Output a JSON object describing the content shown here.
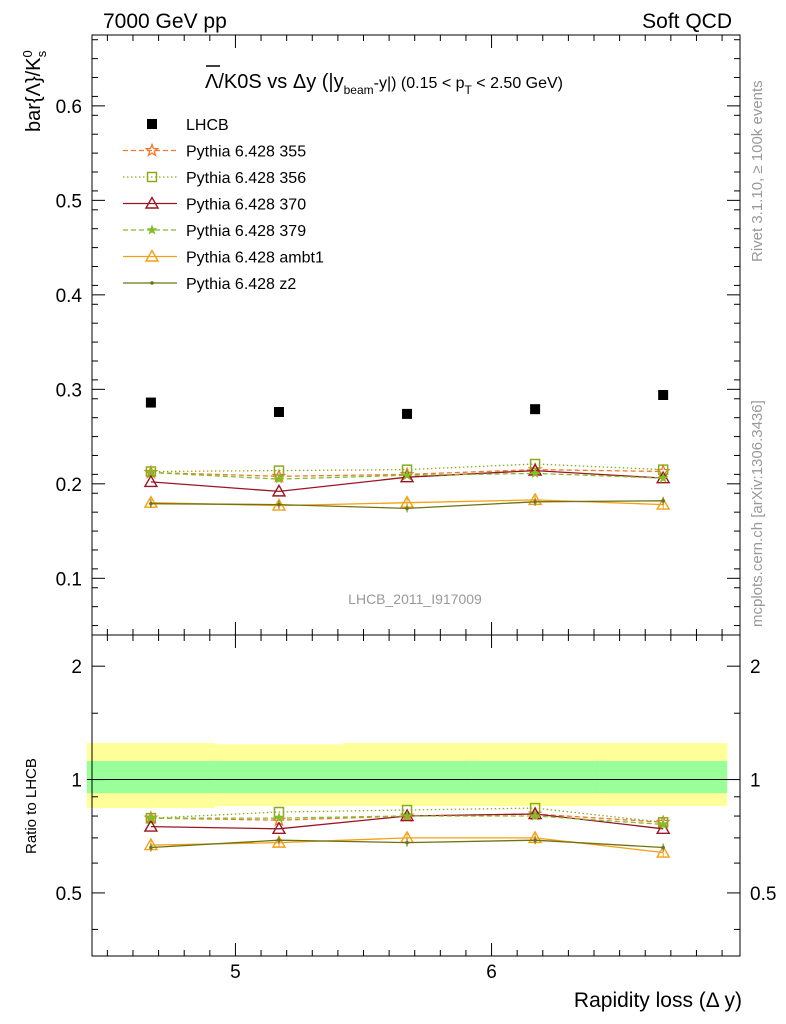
{
  "header": {
    "left": "7000 GeV pp",
    "right": "Soft QCD"
  },
  "side_text": {
    "rivet": "Rivet 3.1.10, ≥ 100k events",
    "mcplots": "mcplots.cern.ch [arXiv:1306.3436]"
  },
  "watermark": "LHCB_2011_I917009",
  "colors": {
    "lhcb": "#000000",
    "p355": "#f0782d",
    "p356": "#8caa1e",
    "p370": "#9b1423",
    "p379": "#82be28",
    "ambt1": "#f5a014",
    "z2": "#6e7314",
    "band_outer": "#ffff99",
    "band_inner": "#99ff99"
  },
  "chart_data": [
    {
      "type": "scatter",
      "title_parts": {
        "main": "Λ/K0S vs Δy (|y",
        "sub1": "beam",
        "mid": "-y|) (0.15 < p",
        "sub2": "T",
        "end": " < 2.50 GeV)"
      },
      "ylabel": "bar{Λ}/K",
      "ylabel_sup": "0",
      "ylabel_sub": "s",
      "xlim": [
        4.44,
        6.97
      ],
      "ylim": [
        0.04,
        0.675
      ],
      "yticks": [
        0.1,
        0.2,
        0.3,
        0.4,
        0.5,
        0.6
      ],
      "yticklabels": [
        "0.1",
        "0.2",
        "0.3",
        "0.4",
        "0.5",
        "0.6"
      ],
      "x": [
        4.67,
        5.17,
        5.67,
        6.17,
        6.67
      ],
      "series": [
        {
          "name": "LHCB",
          "key": "lhcb",
          "marker": "square",
          "line": "none",
          "values": [
            0.286,
            0.276,
            0.274,
            0.279,
            0.294
          ]
        },
        {
          "name": "Pythia 6.428 355",
          "key": "p355",
          "marker": "star",
          "line": "dashed",
          "values": [
            0.212,
            0.208,
            0.21,
            0.215,
            0.213
          ]
        },
        {
          "name": "Pythia 6.428 356",
          "key": "p356",
          "marker": "open-square",
          "line": "dotted",
          "values": [
            0.213,
            0.214,
            0.215,
            0.221,
            0.215
          ]
        },
        {
          "name": "Pythia 6.428 370",
          "key": "p370",
          "marker": "open-triangle",
          "line": "solid",
          "values": [
            0.202,
            0.192,
            0.207,
            0.214,
            0.206
          ]
        },
        {
          "name": "Pythia 6.428 379",
          "key": "p379",
          "marker": "small-star",
          "line": "dashed",
          "values": [
            0.212,
            0.205,
            0.209,
            0.211,
            0.206
          ]
        },
        {
          "name": "Pythia 6.428 ambt1",
          "key": "ambt1",
          "marker": "open-triangle",
          "line": "solid",
          "values": [
            0.18,
            0.177,
            0.18,
            0.183,
            0.178
          ]
        },
        {
          "name": "Pythia 6.428 z2",
          "key": "z2",
          "marker": "dot",
          "line": "solid",
          "values": [
            0.179,
            0.178,
            0.174,
            0.181,
            0.182
          ]
        }
      ]
    },
    {
      "type": "line",
      "ylabel": "Ratio to LHCB",
      "xlabel": "Rapidity loss (Δ y)",
      "xlim": [
        4.44,
        6.97
      ],
      "ylim": [
        0.34,
        2.42
      ],
      "ylog": true,
      "xticks": [
        5,
        6
      ],
      "xticklabels": [
        "5",
        "6"
      ],
      "yticks": [
        0.5,
        1,
        2
      ],
      "yticklabels": [
        "0.5",
        "1",
        "2"
      ],
      "bands": {
        "edges": [
          4.42,
          4.92,
          5.42,
          5.92,
          6.42,
          6.92
        ],
        "outer_low": [
          0.84,
          0.85,
          0.85,
          0.85,
          0.85
        ],
        "outer_high": [
          1.25,
          1.24,
          1.25,
          1.25,
          1.25
        ],
        "inner_low": [
          0.92,
          0.92,
          0.92,
          0.92,
          0.92
        ],
        "inner_high": [
          1.12,
          1.12,
          1.12,
          1.12,
          1.12
        ]
      },
      "x": [
        4.67,
        5.17,
        5.67,
        6.17,
        6.67
      ],
      "series": [
        {
          "key": "p355",
          "marker": "star",
          "line": "dashed",
          "values": [
            0.79,
            0.78,
            0.8,
            0.81,
            0.77
          ]
        },
        {
          "key": "p356",
          "marker": "open-square",
          "line": "dotted",
          "values": [
            0.79,
            0.82,
            0.83,
            0.84,
            0.77
          ]
        },
        {
          "key": "p370",
          "marker": "open-triangle",
          "line": "solid",
          "values": [
            0.75,
            0.74,
            0.8,
            0.81,
            0.74
          ]
        },
        {
          "key": "p379",
          "marker": "small-star",
          "line": "dashed",
          "values": [
            0.79,
            0.79,
            0.8,
            0.8,
            0.76
          ]
        },
        {
          "key": "ambt1",
          "marker": "open-triangle",
          "line": "solid",
          "values": [
            0.67,
            0.68,
            0.7,
            0.7,
            0.64
          ]
        },
        {
          "key": "z2",
          "marker": "dot",
          "line": "solid",
          "values": [
            0.66,
            0.69,
            0.68,
            0.69,
            0.66
          ]
        }
      ]
    }
  ]
}
